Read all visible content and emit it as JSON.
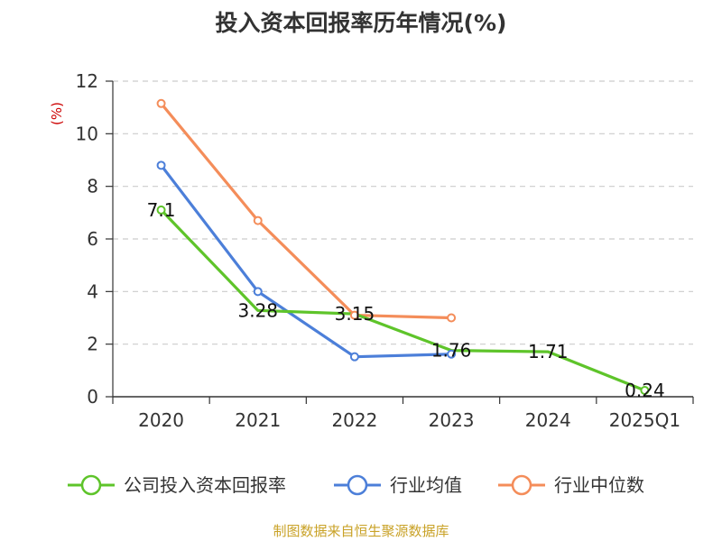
{
  "chart_data": {
    "type": "line",
    "title": "投入资本回报率历年情况(%)",
    "ylabel": "(%)",
    "xlabel": "",
    "ylim": [
      0,
      12
    ],
    "yticks": [
      0,
      2,
      4,
      6,
      8,
      10,
      12
    ],
    "grid": true,
    "categories": [
      "2020",
      "2021",
      "2022",
      "2023",
      "2024",
      "2025Q1"
    ],
    "series": [
      {
        "name": "公司投入资本回报率",
        "color": "#5ec42a",
        "values": [
          7.1,
          3.28,
          3.15,
          1.76,
          1.71,
          0.24
        ],
        "labels": [
          "7.1",
          "3.28",
          "3.15",
          "1.76",
          "1.71",
          "0.24"
        ]
      },
      {
        "name": "行业均值",
        "color": "#4c7fd9",
        "values": [
          8.8,
          4.0,
          1.52,
          1.62,
          null,
          null
        ]
      },
      {
        "name": "行业中位数",
        "color": "#f48d5a",
        "values": [
          11.15,
          6.7,
          3.1,
          3.0,
          null,
          null
        ]
      }
    ],
    "legend_position": "bottom"
  },
  "source": "制图数据来自恒生聚源数据库"
}
